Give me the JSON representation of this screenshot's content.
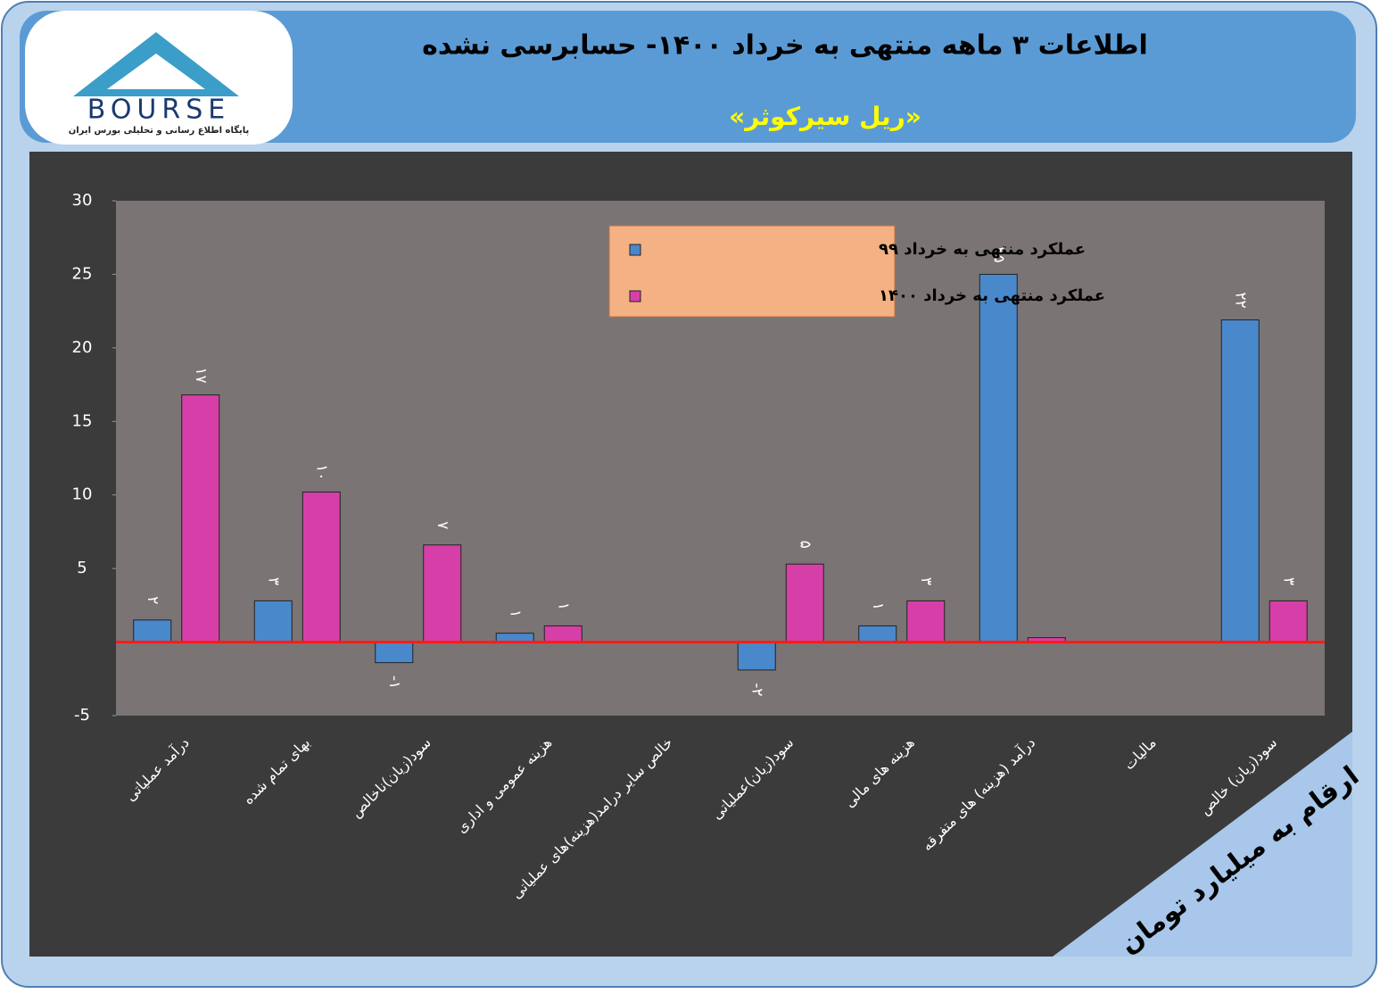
{
  "logo": {
    "brand": "BOURSE",
    "tagline": "پایگاه اطلاع رسانی و تحلیلی بورس ایران"
  },
  "chart_data": {
    "type": "bar",
    "title": "اطلاعات ۳ ماهه منتهی به خرداد ۱۴۰۰- حسابرسی نشده",
    "subtitle": "«ریل سیرکوثر»",
    "note": "ارقام به میلیارد تومان",
    "categories": [
      "درآمد عملیاتی",
      "بهای تمام شده",
      "سود(زیان)ناخالص",
      "هزینه عمومی و اداری",
      "خالص سایر درامد(هزینه)های عملیاتی",
      "سود(زیان)عملیاتی",
      "هزینه های مالی",
      "درآمد (هزینه) های متفرقه",
      "مالیات",
      "سود(زیان) خالص"
    ],
    "series": [
      {
        "name": "عملکرد منتهی به خرداد ۹۹",
        "color": "#4a88cc",
        "values": [
          1.5,
          2.8,
          -1.4,
          0.6,
          null,
          -1.9,
          1.1,
          25,
          null,
          21.9
        ],
        "value_labels": [
          "۲",
          "۳",
          "-۱",
          "۱",
          null,
          "-۲",
          "۱",
          "۲۵",
          null,
          "۲۲"
        ]
      },
      {
        "name": "عملکرد منتهی به خرداد ۱۴۰۰",
        "color": "#d63fa8",
        "values": [
          16.8,
          10.2,
          6.6,
          1.1,
          null,
          5.3,
          2.8,
          0.3,
          null,
          2.8
        ],
        "value_labels": [
          "۱۷",
          "۱۰",
          "۷",
          "۱",
          null,
          "۵",
          "۳",
          null,
          null,
          "۳"
        ]
      }
    ],
    "ylim": [
      -5,
      30
    ],
    "yticks": [
      30,
      25,
      20,
      15,
      10,
      5,
      -5
    ],
    "legend": "top-center",
    "zero_line_color": "#ff1a1a"
  }
}
